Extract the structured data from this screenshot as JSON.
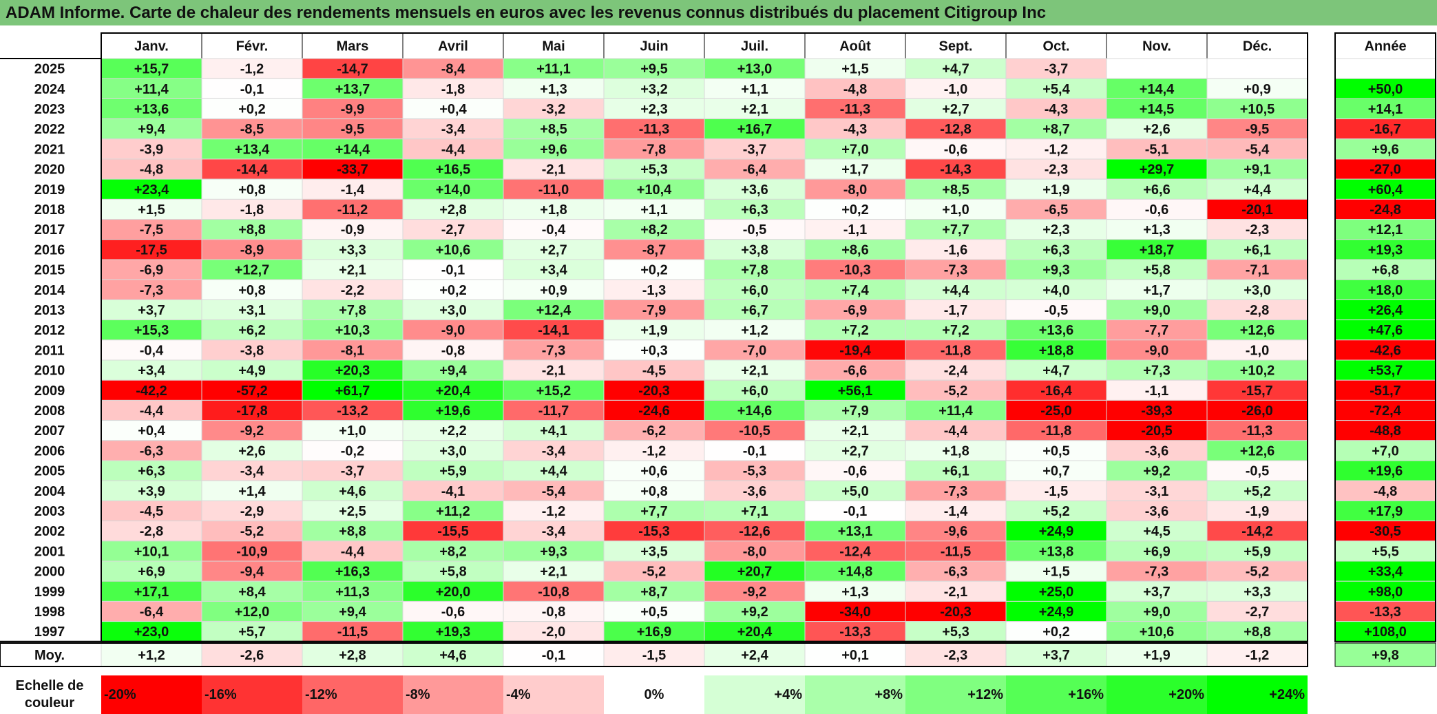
{
  "title": "ADAM Informe. Carte de chaleur des rendements mensuels en euros avec les revenus connus distribués du placement Citigroup Inc",
  "chart_data": {
    "type": "heatmap",
    "title": "ADAM Informe. Carte de chaleur des rendements mensuels en euros avec les revenus connus distribués du placement Citigroup Inc",
    "months": [
      "Janv.",
      "Févr.",
      "Mars",
      "Avril",
      "Mai",
      "Juin",
      "Juil.",
      "Août",
      "Sept.",
      "Oct.",
      "Nov.",
      "Déc."
    ],
    "annual_header": "Année",
    "rows": [
      {
        "year": "2025",
        "values": [
          "+15,7",
          "-1,2",
          "-14,7",
          "-8,4",
          "+11,1",
          "+9,5",
          "+13,0",
          "+1,5",
          "+4,7",
          "-3,7",
          "",
          ""
        ],
        "annual": ""
      },
      {
        "year": "2024",
        "values": [
          "+11,4",
          "-0,1",
          "+13,7",
          "-1,8",
          "+1,3",
          "+3,2",
          "+1,1",
          "-4,8",
          "-1,0",
          "+5,4",
          "+14,4",
          "+0,9"
        ],
        "annual": "+50,0"
      },
      {
        "year": "2023",
        "values": [
          "+13,6",
          "+0,2",
          "-9,9",
          "+0,4",
          "-3,2",
          "+2,3",
          "+2,1",
          "-11,3",
          "+2,7",
          "-4,3",
          "+14,5",
          "+10,5"
        ],
        "annual": "+14,1"
      },
      {
        "year": "2022",
        "values": [
          "+9,4",
          "-8,5",
          "-9,5",
          "-3,4",
          "+8,5",
          "-11,3",
          "+16,7",
          "-4,3",
          "-12,8",
          "+8,7",
          "+2,6",
          "-9,5"
        ],
        "annual": "-16,7"
      },
      {
        "year": "2021",
        "values": [
          "-3,9",
          "+13,4",
          "+14,4",
          "-4,4",
          "+9,6",
          "-7,8",
          "-3,7",
          "+7,0",
          "-0,6",
          "-1,2",
          "-5,1",
          "-5,4"
        ],
        "annual": "+9,6"
      },
      {
        "year": "2020",
        "values": [
          "-4,8",
          "-14,4",
          "-33,7",
          "+16,5",
          "-2,1",
          "+5,3",
          "-6,4",
          "+1,7",
          "-14,3",
          "-2,3",
          "+29,7",
          "+9,1"
        ],
        "annual": "-27,0"
      },
      {
        "year": "2019",
        "values": [
          "+23,4",
          "+0,8",
          "-1,4",
          "+14,0",
          "-11,0",
          "+10,4",
          "+3,6",
          "-8,0",
          "+8,5",
          "+1,9",
          "+6,6",
          "+4,4"
        ],
        "annual": "+60,4"
      },
      {
        "year": "2018",
        "values": [
          "+1,5",
          "-1,8",
          "-11,2",
          "+2,8",
          "+1,8",
          "+1,1",
          "+6,3",
          "+0,2",
          "+1,0",
          "-6,5",
          "-0,6",
          "-20,1"
        ],
        "annual": "-24,8"
      },
      {
        "year": "2017",
        "values": [
          "-7,5",
          "+8,8",
          "-0,9",
          "-2,7",
          "-0,4",
          "+8,2",
          "-0,5",
          "-1,1",
          "+7,7",
          "+2,3",
          "+1,3",
          "-2,3"
        ],
        "annual": "+12,1"
      },
      {
        "year": "2016",
        "values": [
          "-17,5",
          "-8,9",
          "+3,3",
          "+10,6",
          "+2,7",
          "-8,7",
          "+3,8",
          "+8,6",
          "-1,6",
          "+6,3",
          "+18,7",
          "+6,1"
        ],
        "annual": "+19,3"
      },
      {
        "year": "2015",
        "values": [
          "-6,9",
          "+12,7",
          "+2,1",
          "-0,1",
          "+3,4",
          "+0,2",
          "+7,8",
          "-10,3",
          "-7,3",
          "+9,3",
          "+5,8",
          "-7,1"
        ],
        "annual": "+6,8"
      },
      {
        "year": "2014",
        "values": [
          "-7,3",
          "+0,8",
          "-2,2",
          "+0,2",
          "+0,9",
          "-1,3",
          "+6,0",
          "+7,4",
          "+4,4",
          "+4,0",
          "+1,7",
          "+3,0"
        ],
        "annual": "+18,0"
      },
      {
        "year": "2013",
        "values": [
          "+3,7",
          "+3,1",
          "+7,8",
          "+3,0",
          "+12,4",
          "-7,9",
          "+6,7",
          "-6,9",
          "-1,7",
          "-0,5",
          "+9,0",
          "-2,8"
        ],
        "annual": "+26,4"
      },
      {
        "year": "2012",
        "values": [
          "+15,3",
          "+6,2",
          "+10,3",
          "-9,0",
          "-14,1",
          "+1,9",
          "+1,2",
          "+7,2",
          "+7,2",
          "+13,6",
          "-7,7",
          "+12,6"
        ],
        "annual": "+47,6"
      },
      {
        "year": "2011",
        "values": [
          "-0,4",
          "-3,8",
          "-8,1",
          "-0,8",
          "-7,3",
          "+0,3",
          "-7,0",
          "-19,4",
          "-11,8",
          "+18,8",
          "-9,0",
          "-1,0"
        ],
        "annual": "-42,6"
      },
      {
        "year": "2010",
        "values": [
          "+3,4",
          "+4,9",
          "+20,3",
          "+9,4",
          "-2,1",
          "-4,5",
          "+2,1",
          "-6,6",
          "-2,4",
          "+4,7",
          "+7,3",
          "+10,2"
        ],
        "annual": "+53,7"
      },
      {
        "year": "2009",
        "values": [
          "-42,2",
          "-57,2",
          "+61,7",
          "+20,4",
          "+15,2",
          "-20,3",
          "+6,0",
          "+56,1",
          "-5,2",
          "-16,4",
          "-1,1",
          "-15,7"
        ],
        "annual": "-51,7"
      },
      {
        "year": "2008",
        "values": [
          "-4,4",
          "-17,8",
          "-13,2",
          "+19,6",
          "-11,7",
          "-24,6",
          "+14,6",
          "+7,9",
          "+11,4",
          "-25,0",
          "-39,3",
          "-26,0"
        ],
        "annual": "-72,4"
      },
      {
        "year": "2007",
        "values": [
          "+0,4",
          "-9,2",
          "+1,0",
          "+2,2",
          "+4,1",
          "-6,2",
          "-10,5",
          "+2,1",
          "-4,4",
          "-11,8",
          "-20,5",
          "-11,3"
        ],
        "annual": "-48,8"
      },
      {
        "year": "2006",
        "values": [
          "-6,3",
          "+2,6",
          "-0,2",
          "+3,0",
          "-3,4",
          "-1,2",
          "-0,1",
          "+2,7",
          "+1,8",
          "+0,5",
          "-3,6",
          "+12,6"
        ],
        "annual": "+7,0"
      },
      {
        "year": "2005",
        "values": [
          "+6,3",
          "-3,4",
          "-3,7",
          "+5,9",
          "+4,4",
          "+0,6",
          "-5,3",
          "-0,6",
          "+6,1",
          "+0,7",
          "+9,2",
          "-0,5"
        ],
        "annual": "+19,6"
      },
      {
        "year": "2004",
        "values": [
          "+3,9",
          "+1,4",
          "+4,6",
          "-4,1",
          "-5,4",
          "+0,8",
          "-3,6",
          "+5,0",
          "-7,3",
          "-1,5",
          "-3,1",
          "+5,2"
        ],
        "annual": "-4,8"
      },
      {
        "year": "2003",
        "values": [
          "-4,5",
          "-2,9",
          "+2,5",
          "+11,2",
          "-1,2",
          "+7,7",
          "+7,1",
          "-0,1",
          "-1,4",
          "+5,2",
          "-3,6",
          "-1,9"
        ],
        "annual": "+17,9"
      },
      {
        "year": "2002",
        "values": [
          "-2,8",
          "-5,2",
          "+8,8",
          "-15,5",
          "-3,4",
          "-15,3",
          "-12,6",
          "+13,1",
          "-9,6",
          "+24,9",
          "+4,5",
          "-14,2"
        ],
        "annual": "-30,5"
      },
      {
        "year": "2001",
        "values": [
          "+10,1",
          "-10,9",
          "-4,4",
          "+8,2",
          "+9,3",
          "+3,5",
          "-8,0",
          "-12,4",
          "-11,5",
          "+13,8",
          "+6,9",
          "+5,9"
        ],
        "annual": "+5,5"
      },
      {
        "year": "2000",
        "values": [
          "+6,9",
          "-9,4",
          "+16,3",
          "+5,8",
          "+2,1",
          "-5,2",
          "+20,7",
          "+14,8",
          "-6,3",
          "+1,5",
          "-7,3",
          "-5,2"
        ],
        "annual": "+33,4"
      },
      {
        "year": "1999",
        "values": [
          "+17,1",
          "+8,4",
          "+11,3",
          "+20,0",
          "-10,8",
          "+8,7",
          "-9,2",
          "+1,3",
          "-2,1",
          "+25,0",
          "+3,7",
          "+3,3"
        ],
        "annual": "+98,0"
      },
      {
        "year": "1998",
        "values": [
          "-6,4",
          "+12,0",
          "+9,4",
          "-0,6",
          "-0,8",
          "+0,5",
          "+9,2",
          "-34,0",
          "-20,3",
          "+24,9",
          "+9,0",
          "-2,7"
        ],
        "annual": "-13,3"
      },
      {
        "year": "1997",
        "values": [
          "+23,0",
          "+5,7",
          "-11,5",
          "+19,3",
          "-2,0",
          "+16,9",
          "+20,4",
          "-13,3",
          "+5,3",
          "+0,2",
          "+10,6",
          "+8,8"
        ],
        "annual": "+108,0"
      }
    ],
    "average": {
      "label": "Moy.",
      "values": [
        "+1,2",
        "-2,6",
        "+2,8",
        "+4,6",
        "-0,1",
        "-1,5",
        "+2,4",
        "+0,1",
        "-2,3",
        "+3,7",
        "+1,9",
        "-1,2"
      ],
      "annual": "+9,8"
    },
    "scale": {
      "label_line1": "Echelle de",
      "label_line2": "couleur",
      "items": [
        {
          "label": "-20%",
          "value": -20
        },
        {
          "label": "-16%",
          "value": -16
        },
        {
          "label": "-12%",
          "value": -12
        },
        {
          "label": "-8%",
          "value": -8
        },
        {
          "label": "-4%",
          "value": -4
        },
        {
          "label": "0%",
          "value": 0
        },
        {
          "label": "+4%",
          "value": 4
        },
        {
          "label": "+8%",
          "value": 8
        },
        {
          "label": "+12%",
          "value": 12
        },
        {
          "label": "+16%",
          "value": 16
        },
        {
          "label": "+20%",
          "value": 20
        },
        {
          "label": "+24%",
          "value": 24
        }
      ]
    },
    "colors": {
      "negative_max": "#ff0000",
      "neutral": "#ffffff",
      "positive_max": "#00ff00",
      "title_bar": "#7dc57a"
    }
  }
}
